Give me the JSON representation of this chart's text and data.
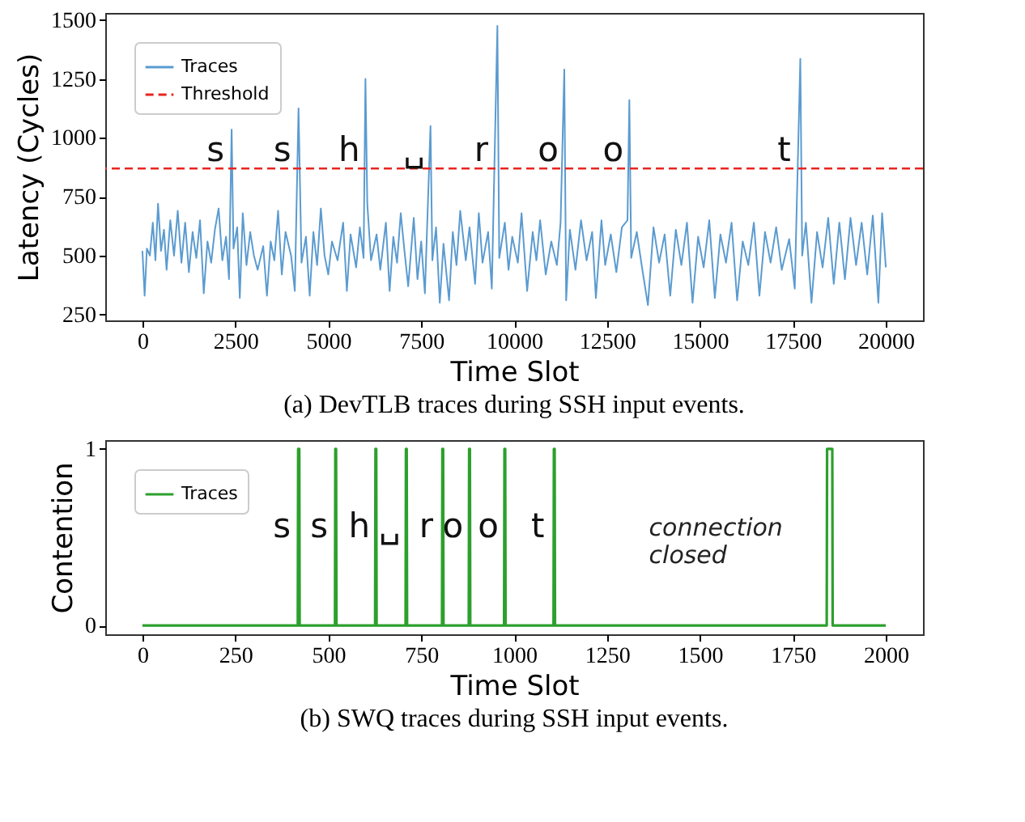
{
  "chart_data": [
    {
      "type": "line",
      "title": "(a) DevTLB traces during SSH input events.",
      "xlabel": "Time Slot",
      "ylabel": "Latency (Cycles)",
      "xlim": [
        -1000,
        21000
      ],
      "xticks": [
        0,
        2500,
        5000,
        7500,
        10000,
        12500,
        15000,
        17500,
        20000
      ],
      "ylim": [
        225,
        1530
      ],
      "yticks": [
        250,
        500,
        750,
        1000,
        1250,
        1500
      ],
      "legend": "top left",
      "grid": false,
      "series": [
        {
          "name": "Traces",
          "color": "#5b9bd0",
          "x": [
            0,
            60,
            120,
            200,
            280,
            350,
            420,
            500,
            580,
            650,
            750,
            850,
            950,
            1050,
            1150,
            1250,
            1350,
            1450,
            1550,
            1650,
            1750,
            1850,
            1950,
            2050,
            2150,
            2250,
            2330,
            2400,
            2450,
            2550,
            2620,
            2700,
            2800,
            2900,
            3000,
            3100,
            3250,
            3350,
            3450,
            3550,
            3650,
            3750,
            3850,
            4000,
            4100,
            4200,
            4280,
            4400,
            4500,
            4600,
            4700,
            4800,
            4900,
            5000,
            5100,
            5250,
            5400,
            5500,
            5600,
            5750,
            5850,
            5950,
            6000,
            6050,
            6150,
            6300,
            6400,
            6550,
            6650,
            6750,
            6850,
            6950,
            7050,
            7150,
            7300,
            7400,
            7500,
            7600,
            7750,
            7800,
            7900,
            8000,
            8100,
            8250,
            8350,
            8450,
            8550,
            8700,
            8800,
            8950,
            9050,
            9150,
            9300,
            9400,
            9550,
            9600,
            9750,
            9850,
            9950,
            10100,
            10200,
            10350,
            10500,
            10600,
            10700,
            10850,
            11000,
            11150,
            11250,
            11350,
            11400,
            11500,
            11650,
            11800,
            11950,
            12100,
            12200,
            12350,
            12450,
            12600,
            12750,
            12900,
            13050,
            13100,
            13150,
            13300,
            13450,
            13600,
            13750,
            13900,
            14050,
            14200,
            14350,
            14500,
            14650,
            14800,
            14950,
            15100,
            15250,
            15400,
            15550,
            15700,
            15850,
            16000,
            16150,
            16300,
            16450,
            16600,
            16750,
            16900,
            17050,
            17200,
            17400,
            17550,
            17700,
            17750,
            17850,
            18000,
            18150,
            18300,
            18450,
            18600,
            18750,
            18900,
            19050,
            19200,
            19350,
            19500,
            19650,
            19800,
            19900,
            20000
          ],
          "values": [
            520,
            330,
            530,
            500,
            640,
            480,
            720,
            520,
            610,
            440,
            650,
            500,
            690,
            470,
            640,
            430,
            600,
            490,
            650,
            340,
            560,
            470,
            610,
            700,
            480,
            580,
            400,
            1035,
            530,
            620,
            320,
            680,
            460,
            600,
            500,
            440,
            540,
            330,
            560,
            480,
            690,
            420,
            600,
            500,
            350,
            1125,
            470,
            580,
            330,
            600,
            460,
            700,
            500,
            420,
            560,
            480,
            640,
            350,
            590,
            450,
            620,
            490,
            1250,
            720,
            480,
            590,
            440,
            640,
            350,
            580,
            470,
            680,
            520,
            370,
            660,
            400,
            560,
            340,
            1050,
            480,
            620,
            300,
            550,
            310,
            600,
            460,
            690,
            480,
            620,
            380,
            680,
            470,
            600,
            360,
            1475,
            490,
            640,
            440,
            580,
            470,
            680,
            350,
            600,
            480,
            650,
            420,
            560,
            460,
            640,
            1290,
            310,
            610,
            440,
            650,
            480,
            600,
            320,
            650,
            460,
            590,
            430,
            620,
            650,
            1160,
            490,
            600,
            440,
            290,
            620,
            470,
            590,
            330,
            610,
            460,
            640,
            300,
            580,
            450,
            650,
            320,
            590,
            470,
            640,
            310,
            560,
            460,
            640,
            330,
            600,
            470,
            620,
            440,
            570,
            360,
            1335,
            500,
            640,
            300,
            600,
            450,
            660,
            380,
            640,
            400,
            660,
            460,
            640,
            420,
            670,
            300,
            680,
            450
          ]
        }
      ],
      "ref_lines": [
        {
          "axis": "y",
          "value": 870,
          "label": "Threshold",
          "color": "#e8251f",
          "line_style": "dashed"
        }
      ],
      "annotations": [
        "s",
        "s",
        "h",
        "␣",
        "r",
        "o",
        "o",
        "t"
      ]
    },
    {
      "type": "line",
      "title": "(b) SWQ traces during SSH input events.",
      "xlabel": "Time Slot",
      "ylabel": "Contention",
      "xlim": [
        -100,
        2100
      ],
      "xticks": [
        0,
        250,
        500,
        750,
        1000,
        1250,
        1500,
        1750,
        2000
      ],
      "ylim": [
        -0.05,
        1.05
      ],
      "yticks": [
        0,
        1
      ],
      "legend": "top left",
      "grid": false,
      "series": [
        {
          "name": "Traces",
          "color": "#2ca02c",
          "x": [
            0,
            418,
            419,
            422,
            423,
            518,
            519,
            521,
            522,
            626,
            627,
            629,
            630,
            708,
            709,
            711,
            712,
            806,
            807,
            809,
            810,
            878,
            879,
            881,
            882,
            973,
            974,
            976,
            977,
            1106,
            1107,
            1109,
            1110,
            1841,
            1842,
            1856,
            1857,
            2000
          ],
          "values": [
            0,
            0,
            1,
            1,
            0,
            0,
            1,
            1,
            0,
            0,
            1,
            1,
            0,
            0,
            1,
            1,
            0,
            0,
            1,
            1,
            0,
            0,
            1,
            1,
            0,
            0,
            1,
            1,
            0,
            0,
            1,
            1,
            0,
            0,
            1,
            1,
            0,
            0
          ]
        }
      ],
      "annotations": [
        "s",
        "s",
        "h",
        "␣",
        "r",
        "o",
        "o",
        "t",
        "connection\nclosed"
      ]
    }
  ]
}
